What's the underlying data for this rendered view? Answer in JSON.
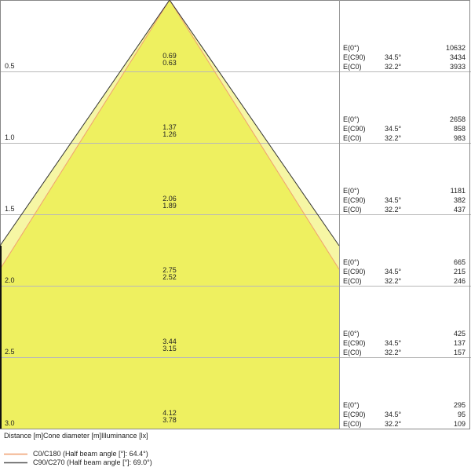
{
  "rows": [
    {
      "distance": "0.5",
      "cone_c90": "0.69",
      "cone_c0": "0.63",
      "e0": "10632",
      "ec90": "3434",
      "ec0": "3933"
    },
    {
      "distance": "1.0",
      "cone_c90": "1.37",
      "cone_c0": "1.26",
      "e0": "2658",
      "ec90": "858",
      "ec0": "983"
    },
    {
      "distance": "1.5",
      "cone_c90": "2.06",
      "cone_c0": "1.89",
      "e0": "1181",
      "ec90": "382",
      "ec0": "437"
    },
    {
      "distance": "2.0",
      "cone_c90": "2.75",
      "cone_c0": "2.52",
      "e0": "665",
      "ec90": "215",
      "ec0": "246"
    },
    {
      "distance": "2.5",
      "cone_c90": "3.44",
      "cone_c0": "3.15",
      "e0": "425",
      "ec90": "137",
      "ec0": "157"
    },
    {
      "distance": "3.0",
      "cone_c90": "4.12",
      "cone_c0": "3.78",
      "e0": "295",
      "ec90": "95",
      "ec0": "109"
    }
  ],
  "labels": {
    "e0": "E(0°)",
    "ec90": "E(C90)",
    "ec0": "E(C0)",
    "angle_c90": "34.5°",
    "angle_c0": "32.2°"
  },
  "header": "Distance [m]Cone diameter [m]Illuminance [lx]",
  "legend": [
    {
      "label": "C0/C180 (Half beam angle [°]: 64.4°)",
      "color": "#f0a070"
    },
    {
      "label": "C90/C270 (Half beam angle [°]: 69.0°)",
      "color": "#555555"
    }
  ],
  "colors": {
    "cone_outer": "#f6f6a4",
    "cone_inner": "#eef060"
  }
}
